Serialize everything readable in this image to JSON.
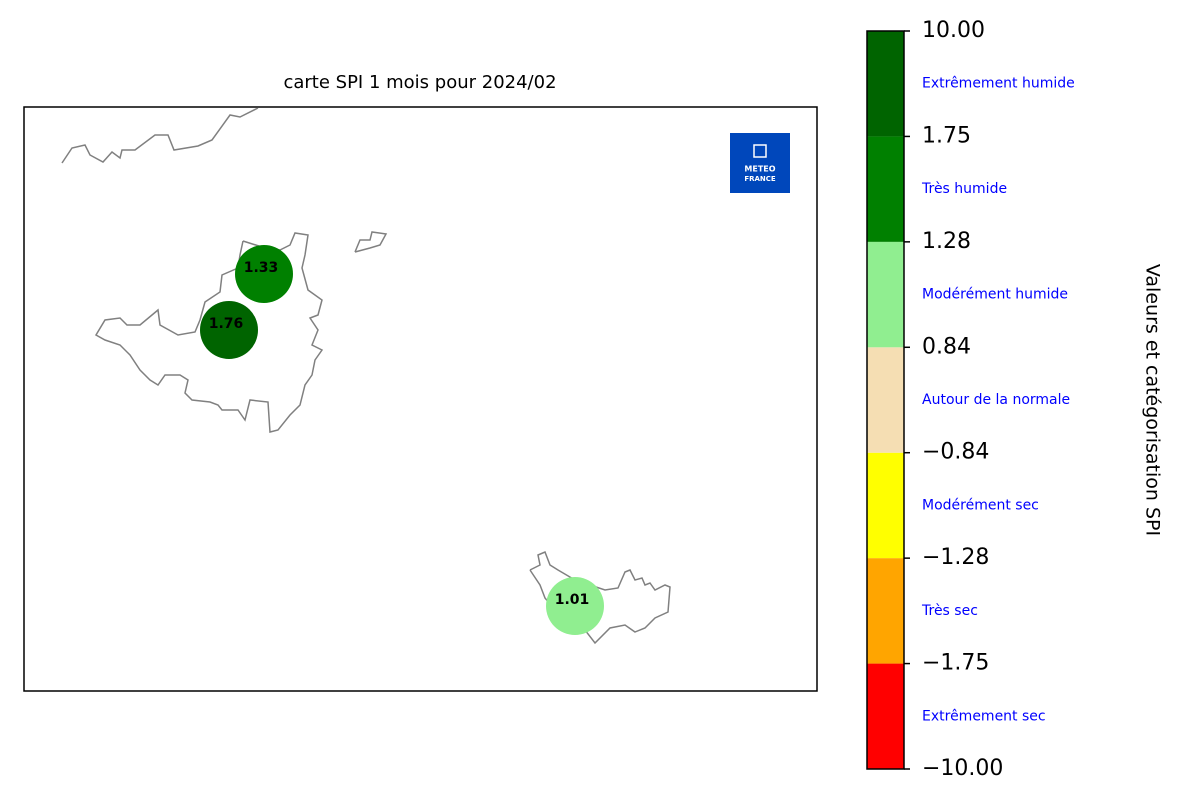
{
  "chart_data": {
    "type": "station-map",
    "title": "carte SPI 1 mois pour 2024/02",
    "colorbar_label": "Valeurs et catégorisation SPI",
    "logo": [
      "METEO",
      "FRANCE"
    ],
    "stations": [
      {
        "label": "1.33",
        "value": 1.33
      },
      {
        "label": "1.76",
        "value": 1.76
      },
      {
        "label": "1.01",
        "value": 1.01
      }
    ],
    "colorbar": {
      "ticks": [
        {
          "value": -10,
          "label": "−10.00"
        },
        {
          "value": -1.75,
          "label": "−1.75"
        },
        {
          "value": -1.28,
          "label": "−1.28"
        },
        {
          "value": -0.84,
          "label": "−0.84"
        },
        0.84,
        1.28,
        1.75,
        {
          "value": 10,
          "label": "10.00"
        }
      ],
      "colors": [
        "#ff0000",
        "#ffa500",
        "#ffff00",
        "#f5deb3",
        "#90ee90",
        "#008000",
        "#006400"
      ],
      "categories": [
        "Extrêmement sec",
        "Très sec",
        "Modérément sec",
        "Autour de la normale",
        "Modérément humide",
        "Très humide",
        "Extrêmement humide"
      ]
    }
  }
}
